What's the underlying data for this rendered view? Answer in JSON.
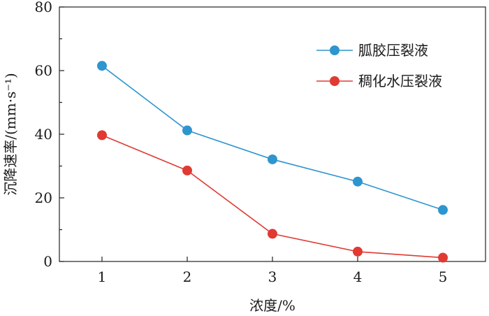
{
  "chart_data": {
    "type": "line",
    "x": [
      1,
      2,
      3,
      4,
      5
    ],
    "xlim": [
      0.5,
      5.5
    ],
    "ylim": [
      0,
      80
    ],
    "xticks": [
      "1",
      "2",
      "3",
      "4",
      "5"
    ],
    "yticks": [
      "0",
      "20",
      "40",
      "60",
      "80"
    ],
    "xlabel": "浓度/%",
    "ylabel": "沉降速率/(mm·s⁻¹)",
    "grid": false,
    "legend_position": "top-right",
    "series": [
      {
        "name": "胍胶压裂液",
        "color": "#2e95cf",
        "values": [
          61.5,
          41.2,
          32.1,
          25.1,
          16.2
        ]
      },
      {
        "name": "稠化水压裂液",
        "color": "#e03a33",
        "values": [
          39.7,
          28.6,
          8.7,
          3.1,
          1.2
        ]
      }
    ]
  }
}
